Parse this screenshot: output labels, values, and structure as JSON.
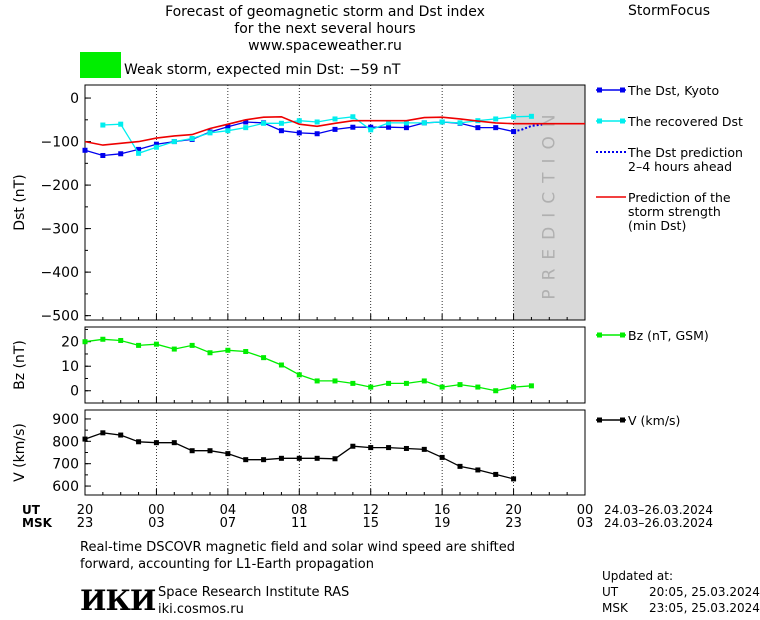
{
  "header": {
    "title_line1": "Forecast of geomagnetic storm and Dst index",
    "title_line2": "for the next several hours",
    "title_line3": "www.spaceweather.ru",
    "brand": "StormFocus",
    "storm_status": "Weak storm, expected min Dst: −59 nT",
    "storm_color": "#00ee00"
  },
  "footer": {
    "note_line1": "Real-time DSCOVR magnetic field and solar wind speed are shifted",
    "note_line2": "forward, accounting for L1-Earth propagation",
    "logo_text": "ИКИ",
    "institute": "Space Research Institute RAS",
    "site": "iki.cosmos.ru",
    "updated_label": "Updated at:",
    "updated_ut_label": "UT",
    "updated_ut": "20:05, 25.03.2024",
    "updated_msk_label": "MSK",
    "updated_msk": "23:05, 25.03.2024"
  },
  "time_axis": {
    "ut_label": "UT",
    "msk_label": "MSK",
    "ut_ticks": [
      "20",
      "00",
      "04",
      "08",
      "12",
      "16",
      "20",
      "00"
    ],
    "msk_ticks": [
      "23",
      "03",
      "07",
      "11",
      "15",
      "19",
      "23",
      "03"
    ],
    "ut_range": "24.03–26.03.2024",
    "msk_range": "24.03–26.03.2024",
    "hours_range": [
      0,
      28
    ],
    "prediction_start_hour": 24,
    "prediction_label": "PREDICTION"
  },
  "chart_data": [
    {
      "type": "line",
      "ylabel": "Dst (nT)",
      "ylim": [
        -510,
        30
      ],
      "yticks": [
        "0",
        "−100",
        "−200",
        "−300",
        "−400",
        "−500"
      ],
      "ytick_values": [
        0,
        -100,
        -200,
        -300,
        -400,
        -500
      ],
      "legend_position": "right",
      "series": [
        {
          "name": "The Dst, Kyoto",
          "color": "#0000ee",
          "marker": "square",
          "x": [
            0,
            1,
            2,
            3,
            4,
            5,
            6,
            7,
            8,
            9,
            10,
            11,
            12,
            13,
            14,
            15,
            16,
            17,
            18,
            19,
            20,
            21,
            22,
            23,
            24
          ],
          "values": [
            -120,
            -132,
            -128,
            -118,
            -106,
            -100,
            -95,
            -78,
            -66,
            -55,
            -57,
            -75,
            -80,
            -82,
            -72,
            -67,
            -67,
            -67,
            -68,
            -57,
            -55,
            -58,
            -68,
            -68,
            -77
          ]
        },
        {
          "name": "The recovered Dst",
          "color": "#00eeee",
          "marker": "square",
          "x": [
            1,
            2,
            3,
            4,
            5,
            6,
            7,
            8,
            9,
            10,
            11,
            12,
            13,
            14,
            15,
            16,
            17,
            18,
            19,
            20,
            21,
            22,
            23,
            24,
            25
          ],
          "values": [
            -62,
            -60,
            -127,
            -113,
            -100,
            -93,
            -80,
            -75,
            -68,
            -58,
            -58,
            -52,
            -55,
            -48,
            -43,
            -73,
            -57,
            -57,
            -57,
            -55,
            -57,
            -52,
            -48,
            -43,
            -42
          ]
        },
        {
          "name": "The Dst prediction\n2–4 hours ahead",
          "color": "#0000ee",
          "marker": "none",
          "dash": true,
          "x": [
            24,
            24.5,
            25,
            25.6
          ],
          "values": [
            -77,
            -72,
            -64,
            -61
          ]
        },
        {
          "name": "Prediction of the\nstorm strength\n(min Dst)",
          "color": "#ee0000",
          "marker": "none",
          "x": [
            0,
            1,
            2,
            3,
            4,
            5,
            6,
            7,
            8,
            9,
            10,
            11,
            12,
            13,
            14,
            15,
            16,
            17,
            18,
            19,
            20,
            21,
            22,
            23,
            24,
            25,
            26,
            27,
            28
          ],
          "values": [
            -100,
            -108,
            -104,
            -100,
            -92,
            -87,
            -84,
            -70,
            -60,
            -50,
            -44,
            -43,
            -60,
            -65,
            -58,
            -52,
            -52,
            -52,
            -52,
            -45,
            -44,
            -48,
            -53,
            -57,
            -59,
            -59,
            -59,
            -59,
            -59
          ]
        }
      ]
    },
    {
      "type": "line",
      "ylabel": "Bz (nT)",
      "ylim": [
        -5,
        26
      ],
      "yticks": [
        "20",
        "10",
        "0"
      ],
      "ytick_values": [
        20,
        10,
        0
      ],
      "series": [
        {
          "name": "Bz (nT, GSM)",
          "color": "#00ee00",
          "marker": "square",
          "x": [
            0,
            1,
            2,
            3,
            4,
            5,
            6,
            7,
            8,
            9,
            10,
            11,
            12,
            13,
            14,
            15,
            16,
            17,
            18,
            19,
            20,
            21,
            22,
            23,
            24,
            25
          ],
          "values": [
            20,
            21,
            20.5,
            18.5,
            19,
            17,
            18.5,
            15.5,
            16.5,
            16,
            13.5,
            10.5,
            6.5,
            4,
            4,
            3,
            1.5,
            3,
            3,
            4,
            1.5,
            2.5,
            1.5,
            0,
            1.5,
            2
          ]
        }
      ]
    },
    {
      "type": "line",
      "ylabel": "V (km/s)",
      "ylim": [
        560,
        940
      ],
      "yticks": [
        "900",
        "800",
        "700",
        "600"
      ],
      "ytick_values": [
        900,
        800,
        700,
        600
      ],
      "series": [
        {
          "name": "V (km/s)",
          "color": "#000000",
          "marker": "square",
          "x": [
            0,
            1,
            2,
            3,
            4,
            5,
            6,
            7,
            8,
            9,
            10,
            11,
            12,
            13,
            14,
            15,
            16,
            17,
            18,
            19,
            20,
            21,
            22,
            23,
            24
          ],
          "values": [
            810,
            838,
            828,
            798,
            794,
            794,
            758,
            758,
            745,
            718,
            718,
            724,
            724,
            724,
            722,
            778,
            772,
            772,
            768,
            764,
            728,
            688,
            672,
            652,
            632
          ]
        }
      ]
    }
  ]
}
